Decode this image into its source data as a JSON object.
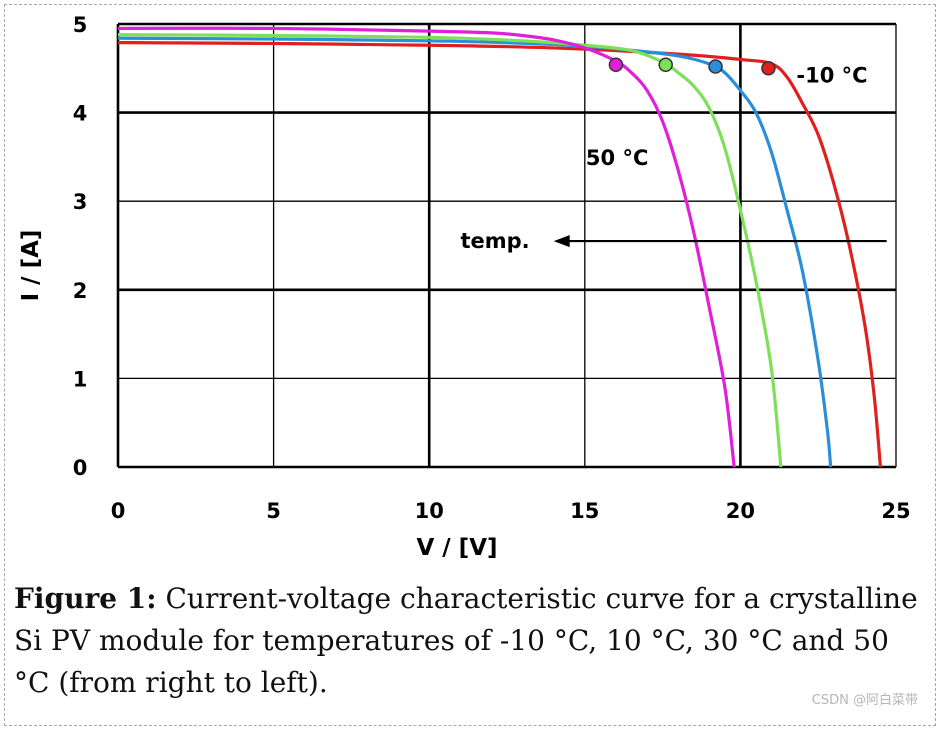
{
  "chart_data": {
    "type": "line",
    "xlabel": "V / [V]",
    "ylabel": "I / [A]",
    "xlim": [
      0,
      25
    ],
    "ylim": [
      0,
      5
    ],
    "x_ticks": [
      "0",
      "5",
      "10",
      "15",
      "20",
      "25"
    ],
    "y_ticks": [
      "0",
      "1",
      "2",
      "3",
      "4",
      "5"
    ],
    "grid": true,
    "series": [
      {
        "temp_label": "-10 °C",
        "color": "#e0201e",
        "points": [
          [
            0,
            4.79
          ],
          [
            5,
            4.78
          ],
          [
            10,
            4.76
          ],
          [
            14,
            4.73
          ],
          [
            18,
            4.66
          ],
          [
            20,
            4.6
          ],
          [
            21,
            4.55
          ],
          [
            21.5,
            4.4
          ],
          [
            22,
            4.1
          ],
          [
            22.5,
            3.75
          ],
          [
            23,
            3.2
          ],
          [
            23.5,
            2.5
          ],
          [
            24,
            1.6
          ],
          [
            24.3,
            0.8
          ],
          [
            24.5,
            0
          ]
        ],
        "mpp": [
          20.9,
          4.5
        ]
      },
      {
        "temp_label": "",
        "color": "#2a8fd8",
        "points": [
          [
            0,
            4.84
          ],
          [
            5,
            4.83
          ],
          [
            10,
            4.81
          ],
          [
            14,
            4.77
          ],
          [
            16,
            4.72
          ],
          [
            18,
            4.64
          ],
          [
            19,
            4.55
          ],
          [
            19.5,
            4.45
          ],
          [
            20,
            4.25
          ],
          [
            20.5,
            4.0
          ],
          [
            21,
            3.55
          ],
          [
            21.5,
            2.9
          ],
          [
            22,
            2.2
          ],
          [
            22.5,
            1.2
          ],
          [
            22.8,
            0.4
          ],
          [
            22.9,
            0
          ]
        ],
        "mpp": [
          19.2,
          4.52
        ]
      },
      {
        "temp_label": "",
        "color": "#7ee05a",
        "points": [
          [
            0,
            4.88
          ],
          [
            5,
            4.87
          ],
          [
            10,
            4.85
          ],
          [
            13,
            4.81
          ],
          [
            15,
            4.76
          ],
          [
            16.5,
            4.7
          ],
          [
            17.5,
            4.57
          ],
          [
            18,
            4.45
          ],
          [
            18.5,
            4.3
          ],
          [
            19,
            4.05
          ],
          [
            19.5,
            3.6
          ],
          [
            20,
            2.9
          ],
          [
            20.5,
            2.1
          ],
          [
            21,
            1.1
          ],
          [
            21.3,
            0
          ]
        ],
        "mpp": [
          17.6,
          4.54
        ]
      },
      {
        "temp_label": "50 °C",
        "color": "#e020d8",
        "points": [
          [
            0,
            4.95
          ],
          [
            5,
            4.95
          ],
          [
            10,
            4.92
          ],
          [
            12,
            4.9
          ],
          [
            13,
            4.87
          ],
          [
            14,
            4.82
          ],
          [
            15,
            4.73
          ],
          [
            16,
            4.58
          ],
          [
            16.5,
            4.45
          ],
          [
            17,
            4.25
          ],
          [
            17.5,
            3.9
          ],
          [
            18,
            3.35
          ],
          [
            18.5,
            2.65
          ],
          [
            19,
            1.8
          ],
          [
            19.5,
            0.9
          ],
          [
            19.8,
            0
          ]
        ],
        "mpp": [
          16.0,
          4.54
        ]
      }
    ],
    "annotation_arrow": {
      "label": "temp.",
      "from_x": 24.7,
      "to_x": 14.0,
      "y": 2.55
    }
  },
  "caption": {
    "prefix": "Figure 1:",
    "text": "Current-voltage characteristic curve for a crystalline Si PV module for temperatures of -10 °C, 10 °C, 30 °C and 50 °C (from right to left)."
  },
  "watermark": "CSDN @阿白菜带"
}
